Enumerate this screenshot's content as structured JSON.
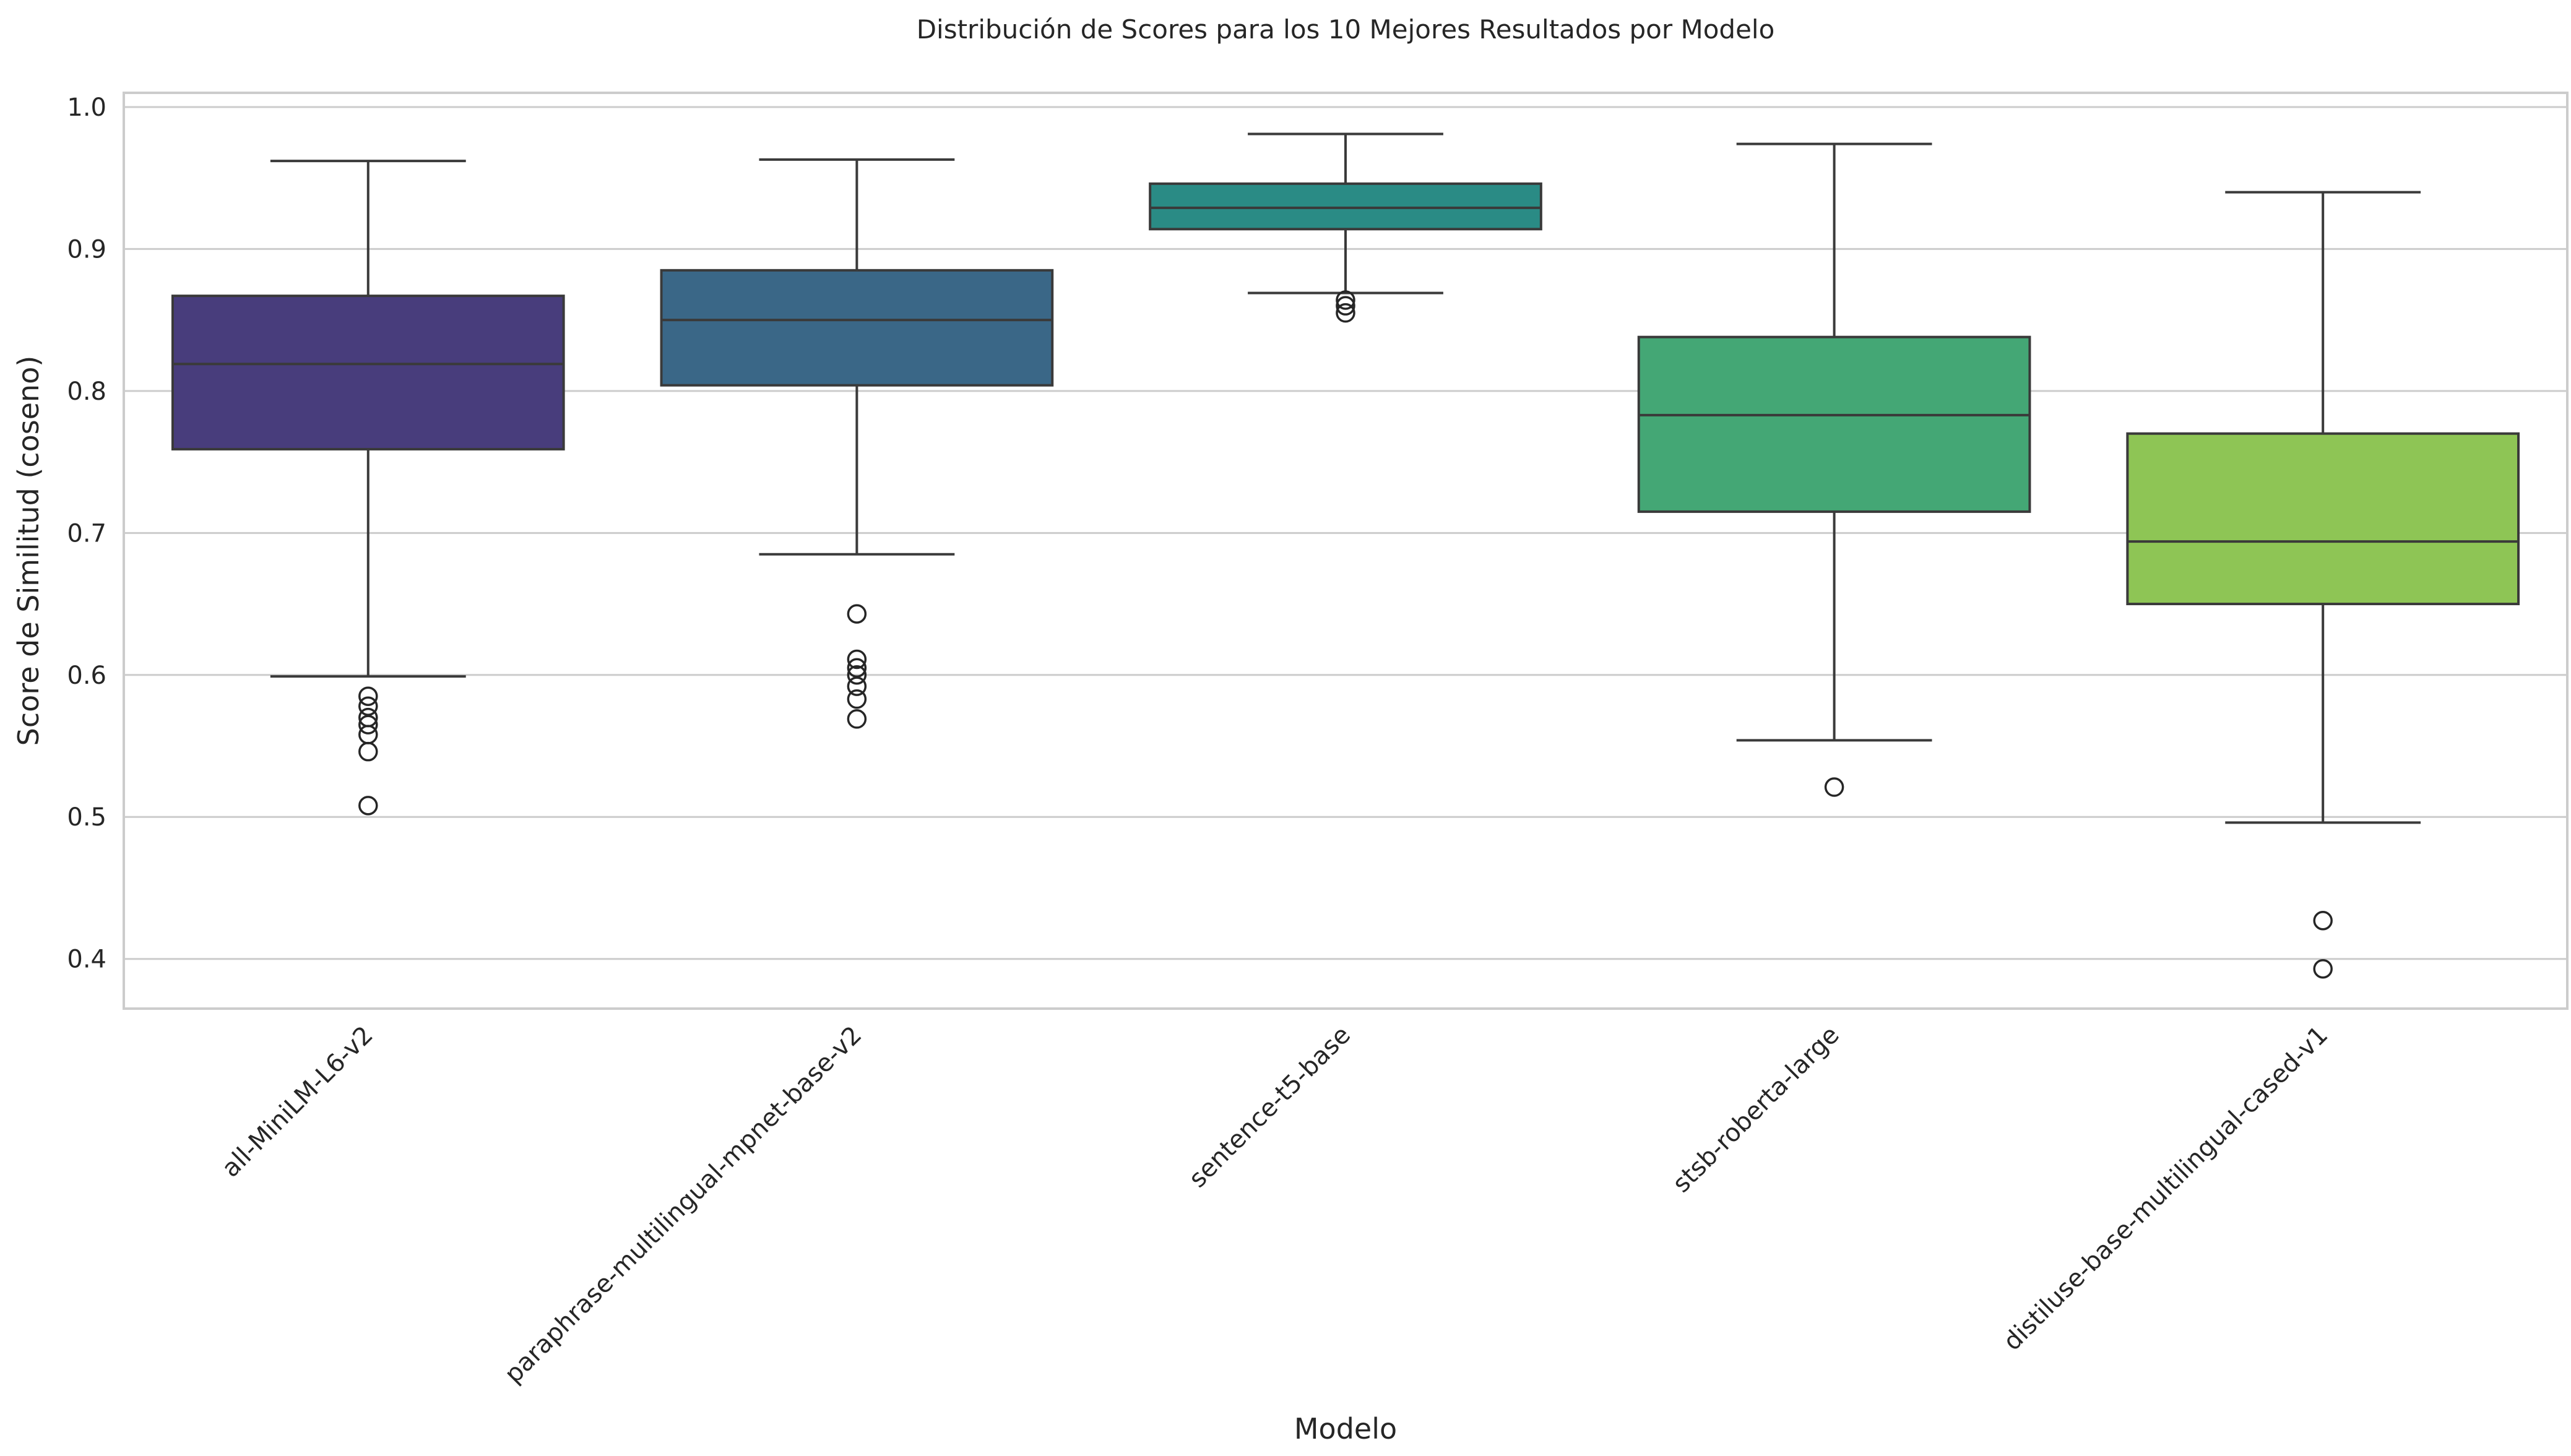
{
  "chart_data": {
    "type": "box",
    "title": "Distribución de Scores para los 10 Mejores Resultados por Modelo",
    "xlabel": "Modelo",
    "ylabel": "Score de Similitud (coseno)",
    "ylim": [
      0.365,
      1.01
    ],
    "yticks": [
      0.4,
      0.5,
      0.6,
      0.7,
      0.8,
      0.9,
      1.0
    ],
    "ytick_labels": [
      "0.4",
      "0.5",
      "0.6",
      "0.7",
      "0.8",
      "0.9",
      "1.0"
    ],
    "grid": true,
    "categories": [
      "all-MiniLM-L6-v2",
      "paraphrase-multilingual-mpnet-base-v2",
      "sentence-t5-base",
      "stsb-roberta-large",
      "distiluse-base-multilingual-cased-v1"
    ],
    "boxes": [
      {
        "whisker_low": 0.599,
        "q1": 0.759,
        "median": 0.819,
        "q3": 0.867,
        "whisker_high": 0.962,
        "outliers": [
          0.585,
          0.578,
          0.57,
          0.565,
          0.558,
          0.546,
          0.508
        ],
        "color": "#483d7c"
      },
      {
        "whisker_low": 0.685,
        "q1": 0.804,
        "median": 0.85,
        "q3": 0.885,
        "whisker_high": 0.963,
        "outliers": [
          0.643,
          0.611,
          0.605,
          0.6,
          0.592,
          0.583,
          0.569
        ],
        "color": "#3a6787"
      },
      {
        "whisker_low": 0.869,
        "q1": 0.914,
        "median": 0.929,
        "q3": 0.946,
        "whisker_high": 0.981,
        "outliers": [
          0.864,
          0.86,
          0.855
        ],
        "color": "#2a8b85"
      },
      {
        "whisker_low": 0.554,
        "q1": 0.715,
        "median": 0.783,
        "q3": 0.838,
        "whisker_high": 0.974,
        "outliers": [
          0.521
        ],
        "color": "#44a775"
      },
      {
        "whisker_low": 0.496,
        "q1": 0.65,
        "median": 0.694,
        "q3": 0.77,
        "whisker_high": 0.94,
        "outliers": [
          0.427,
          0.393
        ],
        "color": "#8ec555"
      }
    ]
  }
}
